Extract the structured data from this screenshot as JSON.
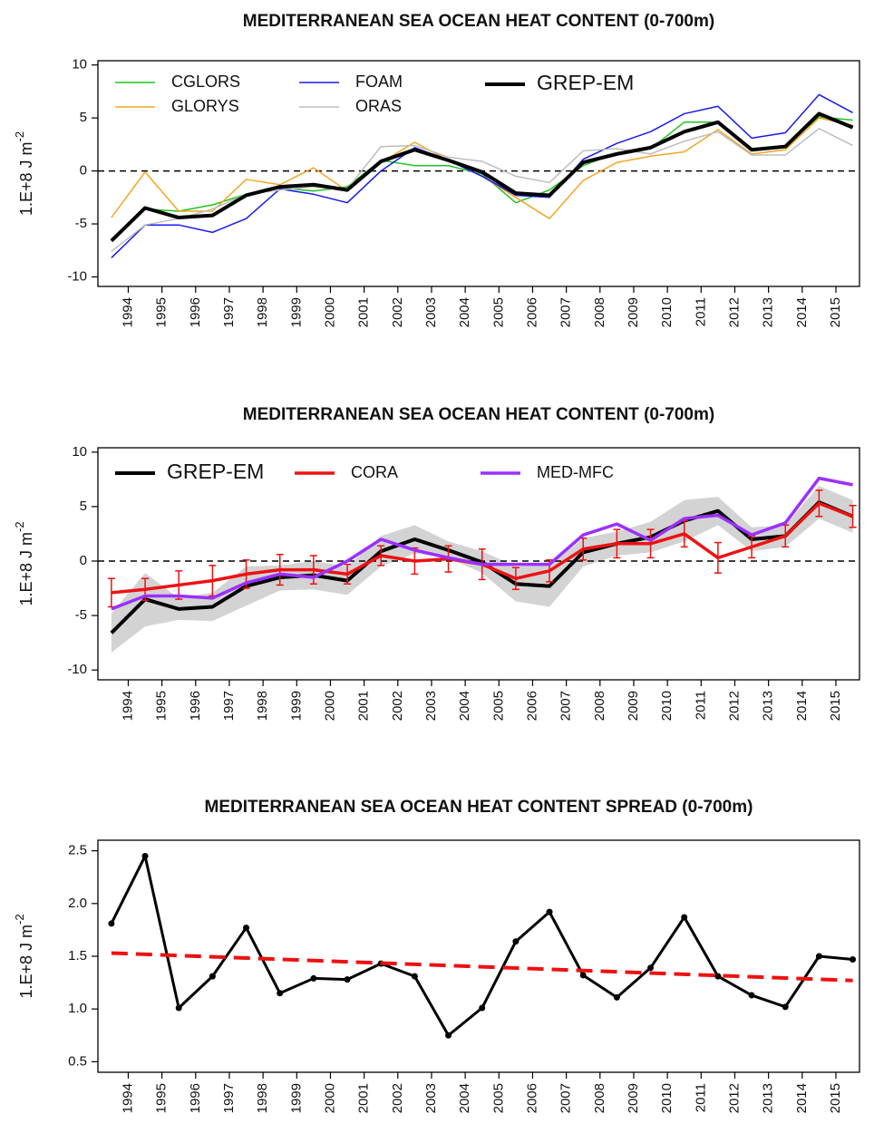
{
  "chart_data": [
    {
      "type": "line",
      "title": "MEDITERRANEAN SEA OCEAN HEAT CONTENT (0-700m)",
      "ylabel": "1.E+8 J m",
      "ylabel_exponent": "-2",
      "x": [
        1993.5,
        1994.5,
        1995.5,
        1996.5,
        1997.5,
        1998.5,
        1999.5,
        2000.5,
        2001.5,
        2002.5,
        2003.5,
        2004.5,
        2005.5,
        2006.5,
        2007.5,
        2008.5,
        2009.5,
        2010.5,
        2011.5,
        2012.5,
        2013.5,
        2014.5,
        2015.5
      ],
      "xlim": [
        1993.1,
        2015.7
      ],
      "xticks": [
        1994,
        1995,
        1996,
        1997,
        1998,
        1999,
        2000,
        2001,
        2002,
        2003,
        2004,
        2005,
        2006,
        2007,
        2008,
        2009,
        2010,
        2011,
        2012,
        2013,
        2014,
        2015
      ],
      "ylim": [
        -10.9,
        10.4
      ],
      "yticks": [
        -10,
        -5,
        0,
        5,
        10
      ],
      "hline": 0,
      "legend": "top-left",
      "series": [
        {
          "name": "CGLORS",
          "color": "#22c322",
          "line_width": 1.5,
          "values": [
            -6.5,
            -3.6,
            -3.8,
            -3.2,
            -2.2,
            -1.6,
            -1.9,
            -1.5,
            1.0,
            0.5,
            0.5,
            -0.3,
            -3.0,
            -1.8,
            0.5,
            1.7,
            2.1,
            4.6,
            4.6,
            2.1,
            2.4,
            5.1,
            4.8
          ]
        },
        {
          "name": "GLORYS",
          "color": "#f5a623",
          "line_width": 1.5,
          "values": [
            -4.4,
            -0.1,
            -3.8,
            -3.8,
            -0.8,
            -1.3,
            0.3,
            -1.9,
            0.8,
            2.7,
            1.0,
            -0.5,
            -2.5,
            -4.5,
            -0.9,
            0.8,
            1.4,
            1.8,
            3.9,
            1.6,
            2.0,
            5.0,
            4.3
          ]
        },
        {
          "name": "FOAM",
          "color": "#1a1aee",
          "line_width": 1.5,
          "values": [
            -8.2,
            -5.1,
            -5.1,
            -5.8,
            -4.5,
            -1.7,
            -2.2,
            -3.0,
            0.0,
            2.2,
            1.0,
            -0.5,
            -2.3,
            -2.5,
            1.1,
            2.6,
            3.7,
            5.4,
            6.1,
            3.1,
            3.6,
            7.2,
            5.5
          ]
        },
        {
          "name": "ORAS",
          "color": "#bdbdbd",
          "line_width": 1.5,
          "values": [
            -7.6,
            -5.1,
            -4.5,
            -3.6,
            -2.2,
            -1.8,
            -1.5,
            -1.7,
            2.3,
            2.4,
            1.3,
            0.9,
            -0.5,
            -1.1,
            1.9,
            2.1,
            1.6,
            2.8,
            3.7,
            1.5,
            1.5,
            4.0,
            2.4
          ]
        },
        {
          "name": "GREP-EM",
          "color": "#000000",
          "line_width": 4,
          "values": [
            -6.6,
            -3.5,
            -4.4,
            -4.2,
            -2.3,
            -1.5,
            -1.3,
            -1.8,
            0.9,
            2.0,
            1.0,
            -0.1,
            -2.1,
            -2.3,
            0.8,
            1.6,
            2.2,
            3.7,
            4.6,
            2.0,
            2.3,
            5.4,
            4.1
          ]
        }
      ]
    },
    {
      "type": "line",
      "title": "MEDITERRANEAN SEA OCEAN HEAT CONTENT (0-700m)",
      "ylabel": "1.E+8 J m",
      "ylabel_exponent": "-2",
      "x": [
        1993.5,
        1994.5,
        1995.5,
        1996.5,
        1997.5,
        1998.5,
        1999.5,
        2000.5,
        2001.5,
        2002.5,
        2003.5,
        2004.5,
        2005.5,
        2006.5,
        2007.5,
        2008.5,
        2009.5,
        2010.5,
        2011.5,
        2012.5,
        2013.5,
        2014.5,
        2015.5
      ],
      "xlim": [
        1993.1,
        2015.7
      ],
      "xticks": [
        1994,
        1995,
        1996,
        1997,
        1998,
        1999,
        2000,
        2001,
        2002,
        2003,
        2004,
        2005,
        2006,
        2007,
        2008,
        2009,
        2010,
        2011,
        2012,
        2013,
        2014,
        2015
      ],
      "ylim": [
        -10.9,
        10.4
      ],
      "yticks": [
        -10,
        -5,
        0,
        5,
        10
      ],
      "hline": 0,
      "legend": "top-left",
      "band": {
        "color": "#d3d3d3",
        "lower": [
          -8.4,
          -6.0,
          -5.4,
          -5.5,
          -4.1,
          -2.7,
          -2.6,
          -3.1,
          -0.5,
          0.7,
          0.3,
          -1.1,
          -3.7,
          -4.2,
          -0.5,
          0.5,
          0.8,
          1.8,
          3.3,
          0.9,
          1.3,
          3.9,
          2.6
        ],
        "upper": [
          -4.8,
          -1.1,
          -3.4,
          -2.9,
          -0.5,
          -0.4,
          0.0,
          -0.5,
          2.3,
          3.3,
          1.8,
          0.9,
          -0.5,
          -0.4,
          2.1,
          2.7,
          3.6,
          5.6,
          5.9,
          3.1,
          3.3,
          6.9,
          5.6
        ]
      },
      "series": [
        {
          "name": "GREP-EM",
          "color": "#000000",
          "line_width": 4,
          "values": [
            -6.6,
            -3.5,
            -4.4,
            -4.2,
            -2.3,
            -1.5,
            -1.3,
            -1.8,
            0.9,
            2.0,
            1.0,
            -0.1,
            -2.1,
            -2.3,
            0.8,
            1.6,
            2.2,
            3.7,
            4.6,
            2.0,
            2.3,
            5.4,
            4.1
          ]
        },
        {
          "name": "CORA",
          "color": "#ee1111",
          "line_width": 3.5,
          "values": [
            -2.9,
            -2.6,
            -2.2,
            -1.8,
            -1.2,
            -0.8,
            -0.8,
            -1.2,
            0.5,
            0.0,
            0.2,
            -0.3,
            -1.6,
            -0.9,
            1.1,
            1.6,
            1.6,
            2.5,
            0.3,
            1.3,
            2.3,
            5.3,
            4.1
          ],
          "errors": [
            1.3,
            1.0,
            1.3,
            1.4,
            1.3,
            1.4,
            1.3,
            0.9,
            0.9,
            1.2,
            1.2,
            1.4,
            1.0,
            1.0,
            1.0,
            1.3,
            1.3,
            1.2,
            1.4,
            1.0,
            1.0,
            1.2,
            1.0
          ]
        },
        {
          "name": "MED-MFC",
          "color": "#9b30ff",
          "line_width": 3.5,
          "values": [
            -4.4,
            -3.2,
            -3.2,
            -3.4,
            -2.0,
            -1.2,
            -1.5,
            0.0,
            2.0,
            1.0,
            0.3,
            -0.3,
            -0.3,
            -0.3,
            2.4,
            3.4,
            1.9,
            3.9,
            4.2,
            2.4,
            3.5,
            7.6,
            7.0
          ]
        }
      ]
    },
    {
      "type": "line",
      "title": "MEDITERRANEAN SEA OCEAN HEAT CONTENT SPREAD (0-700m)",
      "ylabel": "1.E+8 J m",
      "ylabel_exponent": "-2",
      "x": [
        1993.5,
        1994.5,
        1995.5,
        1996.5,
        1997.5,
        1998.5,
        1999.5,
        2000.5,
        2001.5,
        2002.5,
        2003.5,
        2004.5,
        2005.5,
        2006.5,
        2007.5,
        2008.5,
        2009.5,
        2010.5,
        2011.5,
        2012.5,
        2013.5,
        2014.5,
        2015.5
      ],
      "xlim": [
        1993.1,
        2015.7
      ],
      "xticks": [
        1994,
        1995,
        1996,
        1997,
        1998,
        1999,
        2000,
        2001,
        2002,
        2003,
        2004,
        2005,
        2006,
        2007,
        2008,
        2009,
        2010,
        2011,
        2012,
        2013,
        2014,
        2015
      ],
      "ylim": [
        0.4,
        2.6
      ],
      "yticks": [
        0.5,
        {
          "value": 1,
          "label": "1.0"
        },
        1.5,
        {
          "value": 2,
          "label": "2.0"
        },
        2.5
      ],
      "series": [
        {
          "color": "#000000",
          "line_width": 3,
          "markers": true,
          "values": [
            1.81,
            2.45,
            1.01,
            1.31,
            1.77,
            1.15,
            1.29,
            1.28,
            1.43,
            1.31,
            0.75,
            1.01,
            1.64,
            1.92,
            1.32,
            1.11,
            1.39,
            1.87,
            1.31,
            1.13,
            1.02,
            1.5,
            1.47
          ]
        }
      ],
      "trend": {
        "color": "#ee1111",
        "x": [
          1993.5,
          2015.5
        ],
        "values": [
          1.53,
          1.27
        ]
      }
    }
  ]
}
